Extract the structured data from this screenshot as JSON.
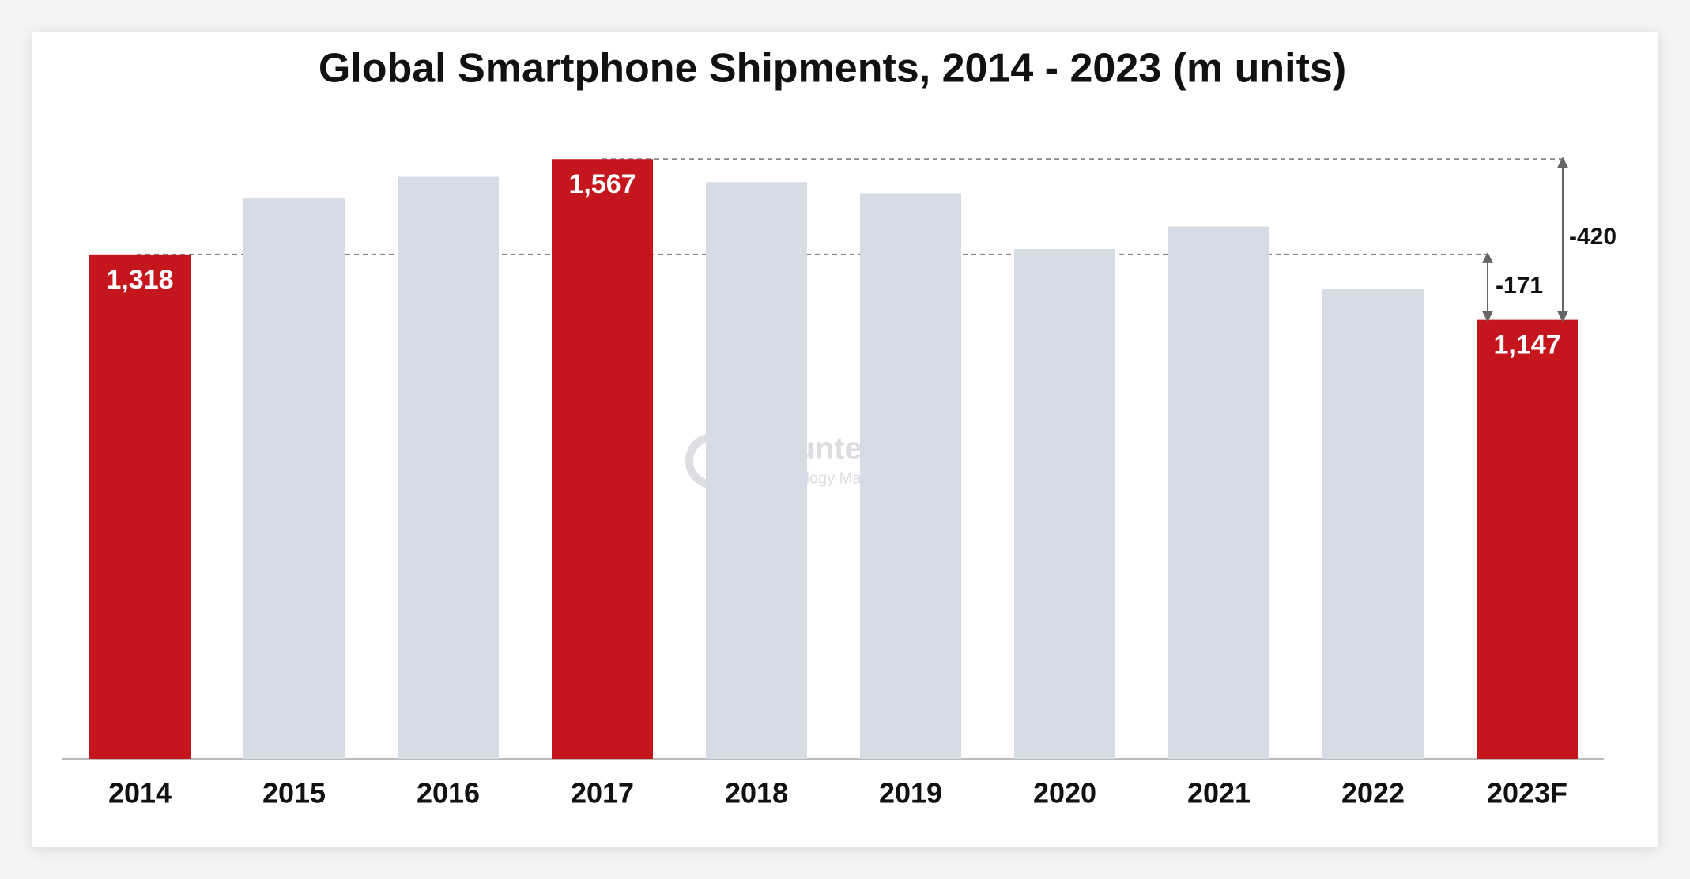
{
  "chart_data": {
    "type": "bar",
    "title": "Global Smartphone Shipments, 2014 - 2023 (m units)",
    "categories": [
      "2014",
      "2015",
      "2016",
      "2017",
      "2018",
      "2019",
      "2020",
      "2021",
      "2022",
      "2023F"
    ],
    "values": [
      1318,
      1464,
      1521,
      1567,
      1507,
      1478,
      1332,
      1391,
      1228,
      1147
    ],
    "value_labels": [
      "1,318",
      null,
      null,
      "1,567",
      null,
      null,
      null,
      null,
      null,
      "1,147"
    ],
    "colors": [
      "#c4161c",
      "#d6dce6",
      "#d6dce6",
      "#c4161c",
      "#d6dce6",
      "#d6dce6",
      "#d6dce6",
      "#d6dce6",
      "#d6dce6",
      "#c4161c"
    ],
    "annotations": [
      "-171",
      "-420"
    ],
    "watermark": {
      "name": "Counterpoint",
      "tagline": "Technology Market Research"
    }
  }
}
